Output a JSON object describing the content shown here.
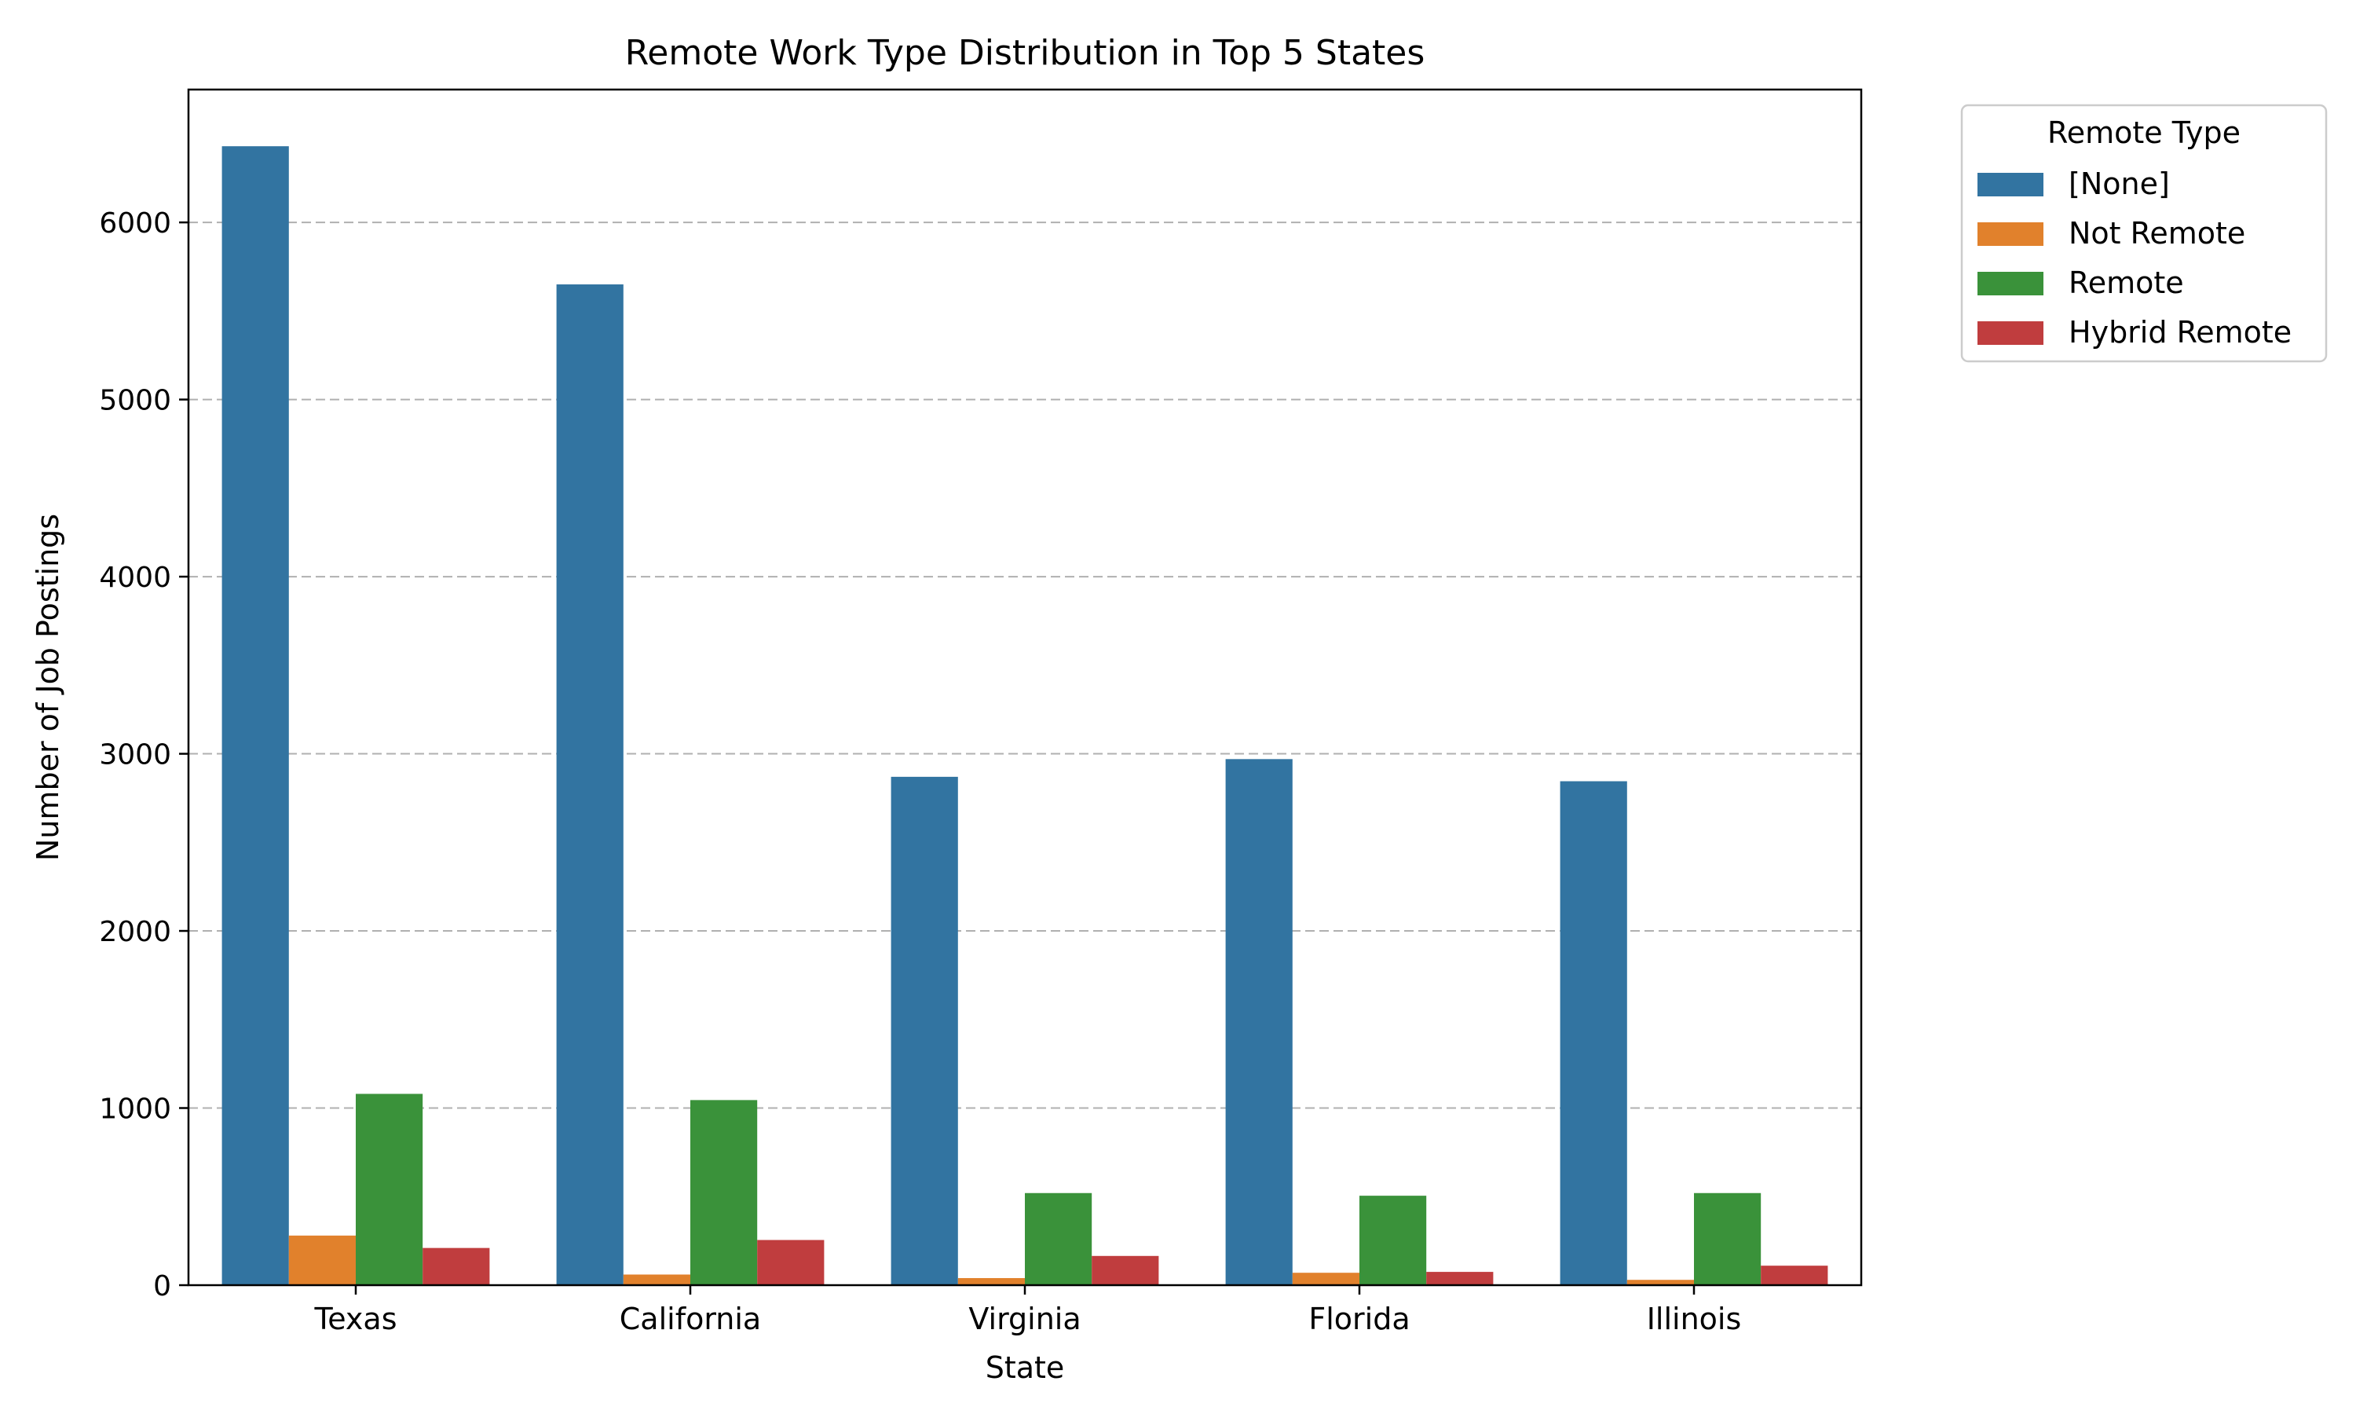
{
  "chart_data": {
    "type": "bar",
    "title": "Remote Work Type Distribution in Top 5 States",
    "xlabel": "State",
    "ylabel": "Number of Job Postings",
    "categories": [
      "Texas",
      "California",
      "Virginia",
      "Florida",
      "Illinois"
    ],
    "series": [
      {
        "name": "[None]",
        "color": "#3274a1",
        "values": [
          6430,
          5650,
          2870,
          2970,
          2845
        ]
      },
      {
        "name": "Not Remote",
        "color": "#e1812c",
        "values": [
          280,
          60,
          40,
          70,
          30
        ]
      },
      {
        "name": "Remote",
        "color": "#3a923a",
        "values": [
          1080,
          1045,
          520,
          505,
          520
        ]
      },
      {
        "name": "Hybrid Remote",
        "color": "#c03d3e",
        "values": [
          210,
          255,
          165,
          75,
          110
        ]
      }
    ],
    "ylim": [
      0,
      6750
    ],
    "yticks": [
      0,
      1000,
      2000,
      3000,
      4000,
      5000,
      6000
    ],
    "grid": "y, dashed",
    "legend": {
      "title": "Remote Type",
      "placement": "outside top-right"
    }
  }
}
